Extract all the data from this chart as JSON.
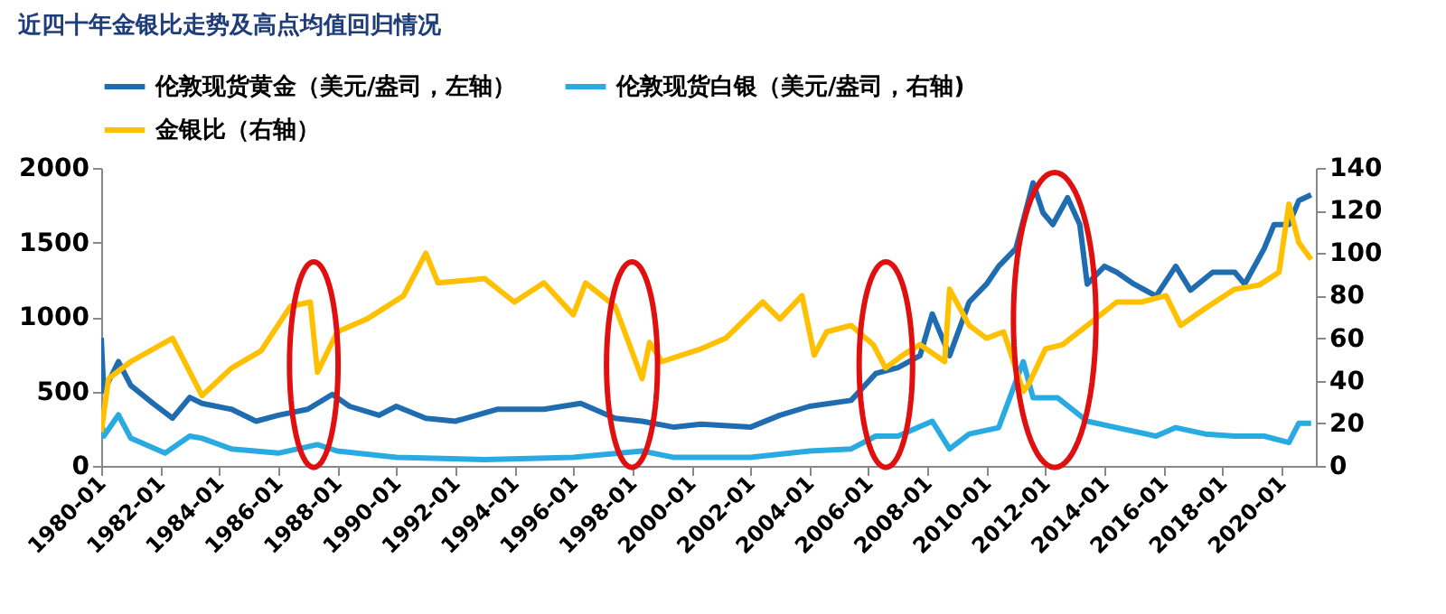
{
  "chart_data": {
    "type": "line",
    "title": "近四十年金银比走势及高点均值回归情况",
    "xlim": [
      "1980-01",
      "2021-03"
    ],
    "xticks": [
      "1980-01",
      "1982-01",
      "1984-01",
      "1986-01",
      "1988-01",
      "1990-01",
      "1992-01",
      "1994-01",
      "1996-01",
      "1998-01",
      "2000-01",
      "2002-01",
      "2004-01",
      "2006-01",
      "2008-01",
      "2010-01",
      "2012-01",
      "2014-01",
      "2016-01",
      "2018-01",
      "2020-01"
    ],
    "ylim": [
      0,
      2000
    ],
    "yticks": [
      0,
      500,
      {
        "value": 1000,
        "label": "1000"
      },
      {
        "value": 1500,
        "label": "1500"
      },
      {
        "value": 2000,
        "label": "2000"
      }
    ],
    "y2lim": [
      0,
      140
    ],
    "y2ticks": [
      0,
      20,
      40,
      60,
      80,
      100,
      120,
      140
    ],
    "grid": false,
    "legend": "top",
    "line_style": "solid",
    "marker": "none",
    "series": [
      {
        "name": "伦敦现货黄金（美元/盎司，左轴）",
        "color": "#1f6cb0",
        "axis": "y",
        "x": [
          "1980-01",
          "1980-02",
          "1980-08",
          "1981-01",
          "1981-10",
          "1982-06",
          "1983-01",
          "1983-06",
          "1984-06",
          "1985-04",
          "1986-01",
          "1987-01",
          "1987-11",
          "1988-06",
          "1989-06",
          "1990-01",
          "1991-01",
          "1992-01",
          "1993-06",
          "1995-01",
          "1996-04",
          "1997-06",
          "1998-05",
          "1999-06",
          "2000-05",
          "2002-01",
          "2003-01",
          "2004-01",
          "2005-06",
          "2006-04",
          "2007-01",
          "2007-10",
          "2008-03",
          "2008-10",
          "2009-06",
          "2010-01",
          "2010-06",
          "2011-01",
          "2011-08",
          "2011-12",
          "2012-04",
          "2012-10",
          "2013-03",
          "2013-06",
          "2014-01",
          "2014-06",
          "2015-01",
          "2015-10",
          "2016-06",
          "2016-12",
          "2017-09",
          "2018-06",
          "2018-10",
          "2019-06",
          "2019-10",
          "2020-04",
          "2020-08",
          "2021-01"
        ],
        "values": [
          860,
          500,
          700,
          540,
          420,
          320,
          460,
          420,
          380,
          300,
          340,
          380,
          480,
          400,
          340,
          400,
          320,
          300,
          380,
          380,
          420,
          320,
          300,
          260,
          280,
          260,
          340,
          400,
          440,
          620,
          660,
          740,
          1020,
          740,
          1100,
          1220,
          1340,
          1460,
          1900,
          1700,
          1620,
          1800,
          1620,
          1220,
          1340,
          1300,
          1220,
          1140,
          1340,
          1180,
          1300,
          1300,
          1220,
          1460,
          1620,
          1620,
          1780,
          1820
        ]
      },
      {
        "name": "伦敦现货白银（美元/盎司，右轴)",
        "color": "#29abe2",
        "axis": "y2",
        "x": [
          "1980-01",
          "1980-02",
          "1980-08",
          "1981-01",
          "1982-03",
          "1983-01",
          "1983-06",
          "1984-06",
          "1986-01",
          "1987-05",
          "1988-01",
          "1990-01",
          "1993-01",
          "1996-01",
          "1998-05",
          "1999-06",
          "2000-05",
          "2002-01",
          "2004-01",
          "2005-06",
          "2006-04",
          "2007-01",
          "2008-03",
          "2008-10",
          "2009-06",
          "2010-06",
          "2011-04",
          "2011-08",
          "2012-06",
          "2013-06",
          "2014-06",
          "2015-10",
          "2016-06",
          "2017-06",
          "2018-06",
          "2019-06",
          "2020-04",
          "2020-08",
          "2021-01"
        ],
        "values": [
          22,
          14,
          24,
          13,
          6,
          14,
          13,
          8,
          6,
          10,
          7,
          4,
          3,
          4,
          7,
          4,
          4,
          4,
          7,
          8,
          14,
          14,
          21,
          8,
          15,
          18,
          49,
          32,
          32,
          21,
          18,
          14,
          18,
          15,
          14,
          14,
          11,
          20,
          20
        ]
      },
      {
        "name": "金银比（右轴）",
        "color": "#ffc000",
        "axis": "y2",
        "x": [
          "1980-01",
          "1980-04",
          "1981-01",
          "1982-06",
          "1983-06",
          "1984-06",
          "1985-06",
          "1986-06",
          "1987-02",
          "1987-05",
          "1988-01",
          "1989-01",
          "1990-04",
          "1991-01",
          "1991-06",
          "1993-01",
          "1994-01",
          "1995-01",
          "1996-01",
          "1996-06",
          "1997-06",
          "1998-05",
          "1998-08",
          "1999-01",
          "2000-05",
          "2001-03",
          "2002-06",
          "2003-01",
          "2003-10",
          "2004-03",
          "2004-08",
          "2005-06",
          "2006-03",
          "2006-08",
          "2007-03",
          "2007-10",
          "2008-08",
          "2008-10",
          "2009-06",
          "2010-01",
          "2010-08",
          "2011-04",
          "2011-06",
          "2012-01",
          "2012-08",
          "2013-06",
          "2014-06",
          "2015-04",
          "2016-02",
          "2016-08",
          "2017-06",
          "2018-06",
          "2019-04",
          "2019-12",
          "2020-04",
          "2020-08",
          "2021-01"
        ],
        "values": [
          16,
          41,
          49,
          60,
          33,
          46,
          54,
          75,
          77,
          44,
          63,
          69,
          80,
          100,
          86,
          88,
          77,
          86,
          71,
          86,
          75,
          41,
          58,
          49,
          55,
          60,
          77,
          69,
          80,
          52,
          63,
          66,
          57,
          46,
          52,
          57,
          49,
          83,
          66,
          60,
          63,
          35,
          38,
          55,
          57,
          66,
          77,
          77,
          80,
          66,
          74,
          83,
          85,
          91,
          123,
          105,
          97
        ]
      }
    ]
  }
}
